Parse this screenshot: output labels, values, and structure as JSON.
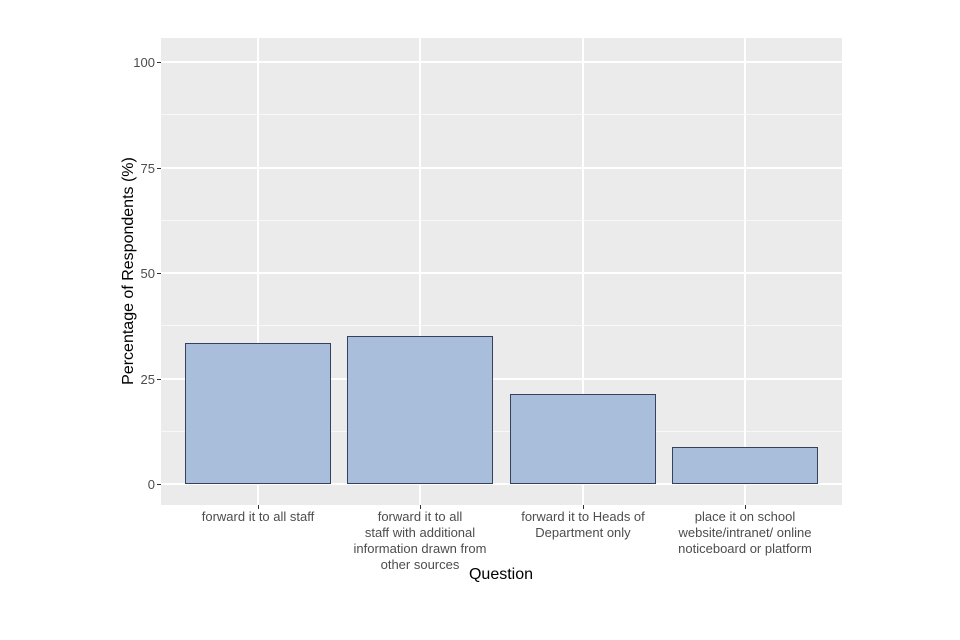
{
  "chart_data": {
    "type": "bar",
    "title": "",
    "xlabel": "Question",
    "ylabel": "Percentage of Respondents (%)",
    "categories": [
      "forward it to all staff",
      "forward it to all staff with additional information drawn from other sources",
      "forward it to Heads of Department only",
      "place it on school website/intranet/ online noticeboard or platform"
    ],
    "category_lines": [
      [
        "forward it to all staff"
      ],
      [
        "forward it to all",
        "staff with additional",
        "information drawn from",
        "other sources"
      ],
      [
        "forward it to Heads of",
        "Department only"
      ],
      [
        "place it on school",
        "website/intranet/ online",
        "noticeboard or platform"
      ]
    ],
    "values": [
      33.4,
      35.1,
      21.3,
      8.8
    ],
    "ylim": [
      0,
      100
    ],
    "yticks": [
      0,
      25,
      50,
      75,
      100
    ],
    "minor_gridlines": [
      12.5,
      37.5,
      62.5,
      87.5
    ],
    "grid": "on",
    "legend": "none",
    "colors": {
      "bar_fill": "#A8BEDB",
      "bar_border": "#36425C",
      "panel_bg": "#EBEBEB",
      "grid": "#FFFFFF",
      "background": "#FFFFFF",
      "tick_label": "#4D4D4D",
      "axis_title": "#000000"
    }
  }
}
